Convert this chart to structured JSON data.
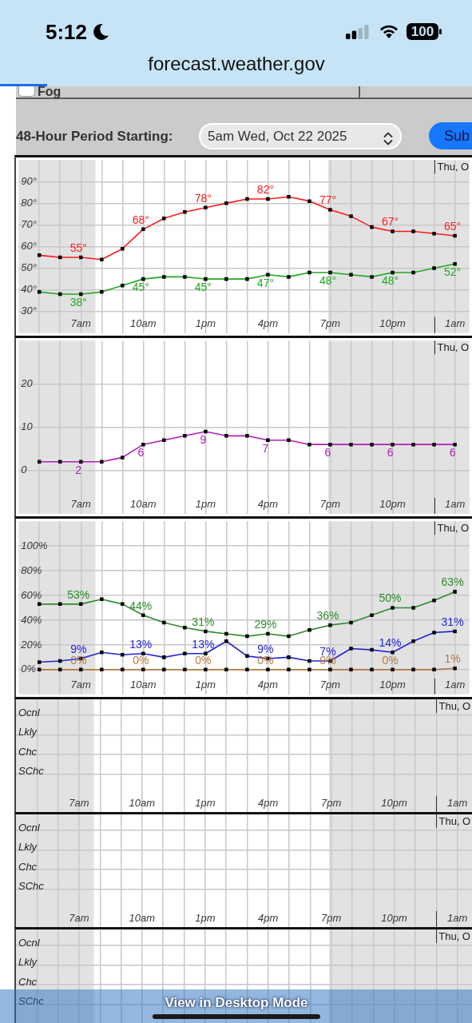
{
  "chart_data": [
    {
      "type": "other",
      "annotations": [
        "5:12",
        "100",
        "forecast.weather.gov",
        "Fog",
        "48-Hour Period Starting:",
        "5am Wed, Oct 22 2025",
        "Sub"
      ]
    },
    {
      "type": "line",
      "x": [
        "2025-10-22T05:00",
        "2025-10-22T06:00",
        "2025-10-22T07:00",
        "2025-10-22T08:00",
        "2025-10-22T09:00",
        "2025-10-22T10:00",
        "2025-10-22T11:00",
        "2025-10-22T12:00",
        "2025-10-22T13:00",
        "2025-10-22T14:00",
        "2025-10-22T15:00",
        "2025-10-22T16:00",
        "2025-10-22T17:00",
        "2025-10-22T18:00",
        "2025-10-22T19:00",
        "2025-10-22T20:00",
        "2025-10-22T21:00",
        "2025-10-22T22:00",
        "2025-10-22T23:00",
        "2025-10-23T00:00",
        "2025-10-23T01:00"
      ],
      "xlim": [
        "2025-10-22T04:00",
        "2025-10-23T01:42"
      ],
      "xticks": [
        {
          "value": "2025-10-22T05:00",
          "label": null
        },
        {
          "value": "2025-10-22T06:00",
          "label": null
        },
        {
          "value": "2025-10-22T07:00",
          "label": "7am"
        },
        {
          "value": "2025-10-22T08:00",
          "label": null
        },
        {
          "value": "2025-10-22T09:00",
          "label": null
        },
        {
          "value": "2025-10-22T10:00",
          "label": "10am"
        },
        {
          "value": "2025-10-22T11:00",
          "label": null
        },
        {
          "value": "2025-10-22T12:00",
          "label": null
        },
        {
          "value": "2025-10-22T13:00",
          "label": "1pm"
        },
        {
          "value": "2025-10-22T14:00",
          "label": null
        },
        {
          "value": "2025-10-22T15:00",
          "label": null
        },
        {
          "value": "2025-10-22T16:00",
          "label": "4pm"
        },
        {
          "value": "2025-10-22T17:00",
          "label": null
        },
        {
          "value": "2025-10-22T18:00",
          "label": null
        },
        {
          "value": "2025-10-22T19:00",
          "label": "7pm"
        },
        {
          "value": "2025-10-22T20:00",
          "label": null
        },
        {
          "value": "2025-10-22T21:00",
          "label": null
        },
        {
          "value": "2025-10-22T22:00",
          "label": "10pm"
        },
        {
          "value": "2025-10-22T23:00",
          "label": null
        },
        {
          "value": "2025-10-23T00:00",
          "label": null
        },
        {
          "value": "2025-10-23T01:00",
          "label": "1am"
        }
      ],
      "ylim": [
        20,
        100
      ],
      "yticks": [
        {
          "value": 30,
          "label": "30°"
        },
        {
          "value": 40,
          "label": "40°"
        },
        {
          "value": 50,
          "label": "50°"
        },
        {
          "value": 60,
          "label": "60°"
        },
        {
          "value": 70,
          "label": "70°"
        },
        {
          "value": 80,
          "label": "80°"
        },
        {
          "value": 90,
          "label": "90°"
        }
      ],
      "series": [
        {
          "color": "#ff1a1a",
          "values": [
            56,
            55,
            55,
            54,
            59,
            68,
            73,
            76,
            78,
            80,
            82,
            82,
            83,
            81,
            77,
            74,
            69,
            67,
            67,
            66,
            65
          ],
          "value_labels": [
            null,
            null,
            "55°",
            null,
            null,
            "68°",
            null,
            null,
            "78°",
            null,
            null,
            "82°",
            null,
            null,
            "77°",
            null,
            null,
            "67°",
            null,
            null,
            "65°"
          ]
        },
        {
          "color": "#22a822",
          "values": [
            39,
            38,
            38,
            39,
            42,
            45,
            46,
            46,
            45,
            45,
            45,
            47,
            46,
            48,
            48,
            47,
            46,
            48,
            48,
            50,
            52
          ],
          "value_labels": [
            null,
            null,
            "38°",
            null,
            null,
            "45°",
            null,
            null,
            "45°",
            null,
            null,
            "47°",
            null,
            null,
            "48°",
            null,
            null,
            "48°",
            null,
            null,
            "52°"
          ]
        }
      ],
      "marker": "square",
      "grid": true,
      "bands": [
        {
          "axis": "x",
          "from": "2025-10-22T04:00",
          "to": "2025-10-22T07:42",
          "color": "#e2e2e2"
        },
        {
          "axis": "x",
          "from": "2025-10-22T18:54",
          "to": "2025-10-23T01:42",
          "color": "#e2e2e2"
        }
      ],
      "ref_lines": [
        {
          "axis": "x",
          "value": "2025-10-23T00:00",
          "label": "Thu, O"
        }
      ]
    },
    {
      "type": "line",
      "x": [
        "2025-10-22T05:00",
        "2025-10-22T06:00",
        "2025-10-22T07:00",
        "2025-10-22T08:00",
        "2025-10-22T09:00",
        "2025-10-22T10:00",
        "2025-10-22T11:00",
        "2025-10-22T12:00",
        "2025-10-22T13:00",
        "2025-10-22T14:00",
        "2025-10-22T15:00",
        "2025-10-22T16:00",
        "2025-10-22T17:00",
        "2025-10-22T18:00",
        "2025-10-22T19:00",
        "2025-10-22T20:00",
        "2025-10-22T21:00",
        "2025-10-22T22:00",
        "2025-10-22T23:00",
        "2025-10-23T00:00",
        "2025-10-23T01:00"
      ],
      "xlim": [
        "2025-10-22T04:00",
        "2025-10-23T01:42"
      ],
      "xticks": [
        {
          "value": "2025-10-22T05:00",
          "label": null
        },
        {
          "value": "2025-10-22T06:00",
          "label": null
        },
        {
          "value": "2025-10-22T07:00",
          "label": "7am"
        },
        {
          "value": "2025-10-22T08:00",
          "label": null
        },
        {
          "value": "2025-10-22T09:00",
          "label": null
        },
        {
          "value": "2025-10-22T10:00",
          "label": "10am"
        },
        {
          "value": "2025-10-22T11:00",
          "label": null
        },
        {
          "value": "2025-10-22T12:00",
          "label": null
        },
        {
          "value": "2025-10-22T13:00",
          "label": "1pm"
        },
        {
          "value": "2025-10-22T14:00",
          "label": null
        },
        {
          "value": "2025-10-22T15:00",
          "label": null
        },
        {
          "value": "2025-10-22T16:00",
          "label": "4pm"
        },
        {
          "value": "2025-10-22T17:00",
          "label": null
        },
        {
          "value": "2025-10-22T18:00",
          "label": null
        },
        {
          "value": "2025-10-22T19:00",
          "label": "7pm"
        },
        {
          "value": "2025-10-22T20:00",
          "label": null
        },
        {
          "value": "2025-10-22T21:00",
          "label": null
        },
        {
          "value": "2025-10-22T22:00",
          "label": "10pm"
        },
        {
          "value": "2025-10-22T23:00",
          "label": null
        },
        {
          "value": "2025-10-23T00:00",
          "label": null
        },
        {
          "value": "2025-10-23T01:00",
          "label": "1am"
        }
      ],
      "ylim": [
        -10,
        30
      ],
      "yticks": [
        0,
        10,
        20
      ],
      "series": [
        {
          "color": "#b01cb8",
          "values": [
            2,
            2,
            2,
            2,
            3,
            6,
            7,
            8,
            9,
            8,
            8,
            7,
            7,
            6,
            6,
            6,
            6,
            6,
            6,
            6,
            6
          ],
          "value_labels": [
            null,
            null,
            "2",
            null,
            null,
            "6",
            null,
            null,
            "9",
            null,
            null,
            "7",
            null,
            null,
            "6",
            null,
            null,
            "6",
            null,
            null,
            "6"
          ]
        }
      ],
      "marker": "square",
      "grid": true,
      "bands": [
        {
          "axis": "x",
          "from": "2025-10-22T04:00",
          "to": "2025-10-22T07:42",
          "color": "#e2e2e2"
        },
        {
          "axis": "x",
          "from": "2025-10-22T18:54",
          "to": "2025-10-23T01:42",
          "color": "#e2e2e2"
        }
      ],
      "ref_lines": [
        {
          "axis": "x",
          "value": "2025-10-23T00:00",
          "label": "Thu, O"
        }
      ]
    },
    {
      "type": "line",
      "x": [
        "2025-10-22T05:00",
        "2025-10-22T06:00",
        "2025-10-22T07:00",
        "2025-10-22T08:00",
        "2025-10-22T09:00",
        "2025-10-22T10:00",
        "2025-10-22T11:00",
        "2025-10-22T12:00",
        "2025-10-22T13:00",
        "2025-10-22T14:00",
        "2025-10-22T15:00",
        "2025-10-22T16:00",
        "2025-10-22T17:00",
        "2025-10-22T18:00",
        "2025-10-22T19:00",
        "2025-10-22T20:00",
        "2025-10-22T21:00",
        "2025-10-22T22:00",
        "2025-10-22T23:00",
        "2025-10-23T00:00",
        "2025-10-23T01:00"
      ],
      "xlim": [
        "2025-10-22T04:00",
        "2025-10-23T01:42"
      ],
      "xticks": [
        {
          "value": "2025-10-22T05:00",
          "label": null
        },
        {
          "value": "2025-10-22T06:00",
          "label": null
        },
        {
          "value": "2025-10-22T07:00",
          "label": "7am"
        },
        {
          "value": "2025-10-22T08:00",
          "label": null
        },
        {
          "value": "2025-10-22T09:00",
          "label": null
        },
        {
          "value": "2025-10-22T10:00",
          "label": "10am"
        },
        {
          "value": "2025-10-22T11:00",
          "label": null
        },
        {
          "value": "2025-10-22T12:00",
          "label": null
        },
        {
          "value": "2025-10-22T13:00",
          "label": "1pm"
        },
        {
          "value": "2025-10-22T14:00",
          "label": null
        },
        {
          "value": "2025-10-22T15:00",
          "label": null
        },
        {
          "value": "2025-10-22T16:00",
          "label": "4pm"
        },
        {
          "value": "2025-10-22T17:00",
          "label": null
        },
        {
          "value": "2025-10-22T18:00",
          "label": null
        },
        {
          "value": "2025-10-22T19:00",
          "label": "7pm"
        },
        {
          "value": "2025-10-22T20:00",
          "label": null
        },
        {
          "value": "2025-10-22T21:00",
          "label": null
        },
        {
          "value": "2025-10-22T22:00",
          "label": "10pm"
        },
        {
          "value": "2025-10-22T23:00",
          "label": null
        },
        {
          "value": "2025-10-23T00:00",
          "label": null
        },
        {
          "value": "2025-10-23T01:00",
          "label": "1am"
        }
      ],
      "ylim": [
        -20,
        120
      ],
      "yticks": [
        {
          "value": 0,
          "label": "0%"
        },
        {
          "value": 20,
          "label": "20%"
        },
        {
          "value": 40,
          "label": "40%"
        },
        {
          "value": 60,
          "label": "60%"
        },
        {
          "value": 80,
          "label": "80%"
        },
        {
          "value": 100,
          "label": "100%"
        }
      ],
      "series": [
        {
          "color": "#2e8b2e",
          "values": [
            53,
            53,
            53,
            57,
            53,
            44,
            38,
            34,
            31,
            29,
            27,
            29,
            27,
            32,
            36,
            38,
            44,
            50,
            50,
            56,
            63
          ],
          "value_labels": [
            null,
            null,
            "53%",
            null,
            null,
            "44%",
            null,
            null,
            "31%",
            null,
            null,
            "29%",
            null,
            null,
            "36%",
            null,
            null,
            "50%",
            null,
            null,
            "63%"
          ]
        },
        {
          "color": "#2323d8",
          "values": [
            6,
            7,
            9,
            14,
            12,
            13,
            10,
            13,
            13,
            23,
            11,
            9,
            10,
            7,
            7,
            17,
            16,
            14,
            23,
            30,
            31
          ],
          "value_labels": [
            null,
            null,
            "9%",
            null,
            null,
            "13%",
            null,
            null,
            "13%",
            null,
            null,
            "9%",
            null,
            null,
            "7%",
            null,
            null,
            "14%",
            null,
            null,
            "31%"
          ]
        },
        {
          "color": "#b5793f",
          "values": [
            0,
            0,
            0,
            0,
            0,
            0,
            0,
            0,
            0,
            0,
            0,
            0,
            0,
            0,
            0,
            0,
            0,
            0,
            0,
            0,
            1
          ],
          "value_labels": [
            null,
            null,
            "0%",
            null,
            null,
            "0%",
            null,
            null,
            "0%",
            null,
            null,
            "0%",
            null,
            null,
            "0%",
            null,
            null,
            "0%",
            null,
            null,
            "1%"
          ]
        }
      ],
      "marker": "square",
      "grid": true,
      "bands": [
        {
          "axis": "x",
          "from": "2025-10-22T04:00",
          "to": "2025-10-22T07:42",
          "color": "#e2e2e2"
        },
        {
          "axis": "x",
          "from": "2025-10-22T18:54",
          "to": "2025-10-23T01:42",
          "color": "#e2e2e2"
        }
      ],
      "ref_lines": [
        {
          "axis": "x",
          "value": "2025-10-23T00:00",
          "label": "Thu, O"
        }
      ]
    },
    {
      "type": "heatmap",
      "x": [
        "2025-10-22T05:00",
        "2025-10-22T06:00",
        "2025-10-22T07:00",
        "2025-10-22T08:00",
        "2025-10-22T09:00",
        "2025-10-22T10:00",
        "2025-10-22T11:00",
        "2025-10-22T12:00",
        "2025-10-22T13:00",
        "2025-10-22T14:00",
        "2025-10-22T15:00",
        "2025-10-22T16:00",
        "2025-10-22T17:00",
        "2025-10-22T18:00",
        "2025-10-22T19:00",
        "2025-10-22T20:00",
        "2025-10-22T21:00",
        "2025-10-22T22:00",
        "2025-10-22T23:00",
        "2025-10-23T00:00",
        "2025-10-23T01:00"
      ],
      "xlim": [
        "2025-10-22T04:00",
        "2025-10-23T01:42"
      ],
      "xticks": [
        {
          "value": "2025-10-22T05:00",
          "label": null
        },
        {
          "value": "2025-10-22T06:00",
          "label": null
        },
        {
          "value": "2025-10-22T07:00",
          "label": "7am"
        },
        {
          "value": "2025-10-22T08:00",
          "label": null
        },
        {
          "value": "2025-10-22T09:00",
          "label": null
        },
        {
          "value": "2025-10-22T10:00",
          "label": "10am"
        },
        {
          "value": "2025-10-22T11:00",
          "label": null
        },
        {
          "value": "2025-10-22T12:00",
          "label": null
        },
        {
          "value": "2025-10-22T13:00",
          "label": "1pm"
        },
        {
          "value": "2025-10-22T14:00",
          "label": null
        },
        {
          "value": "2025-10-22T15:00",
          "label": null
        },
        {
          "value": "2025-10-22T16:00",
          "label": "4pm"
        },
        {
          "value": "2025-10-22T17:00",
          "label": null
        },
        {
          "value": "2025-10-22T18:00",
          "label": null
        },
        {
          "value": "2025-10-22T19:00",
          "label": "7pm"
        },
        {
          "value": "2025-10-22T20:00",
          "label": null
        },
        {
          "value": "2025-10-22T21:00",
          "label": null
        },
        {
          "value": "2025-10-22T22:00",
          "label": "10pm"
        },
        {
          "value": "2025-10-22T23:00",
          "label": null
        },
        {
          "value": "2025-10-23T00:00",
          "label": null
        },
        {
          "value": "2025-10-23T01:00",
          "label": "1am"
        }
      ],
      "y_categories": [
        "Ocnl",
        "Lkly",
        "Chc",
        "SChc"
      ],
      "cells": [
        [
          null,
          null,
          null,
          null,
          null,
          null,
          null,
          null,
          null,
          null,
          null,
          null,
          null,
          null,
          null,
          null,
          null,
          null,
          null,
          null,
          null
        ],
        [
          null,
          null,
          null,
          null,
          null,
          null,
          null,
          null,
          null,
          null,
          null,
          null,
          null,
          null,
          null,
          null,
          null,
          null,
          null,
          null,
          null
        ],
        [
          null,
          null,
          null,
          null,
          null,
          null,
          null,
          null,
          null,
          null,
          null,
          null,
          null,
          null,
          null,
          null,
          null,
          null,
          null,
          null,
          null
        ],
        [
          null,
          null,
          null,
          null,
          null,
          null,
          null,
          null,
          null,
          null,
          null,
          null,
          null,
          null,
          null,
          null,
          null,
          null,
          null,
          null,
          null
        ]
      ],
      "grid": true,
      "bands": [
        {
          "axis": "x",
          "from": "2025-10-22T04:00",
          "to": "2025-10-22T07:42",
          "color": "#e2e2e2"
        },
        {
          "axis": "x",
          "from": "2025-10-22T18:54",
          "to": "2025-10-23T01:42",
          "color": "#e2e2e2"
        }
      ],
      "ref_lines": [
        {
          "axis": "x",
          "value": "2025-10-23T00:00",
          "label": "Thu, O"
        }
      ]
    },
    {
      "type": "heatmap",
      "x": [
        "2025-10-22T05:00",
        "2025-10-22T06:00",
        "2025-10-22T07:00",
        "2025-10-22T08:00",
        "2025-10-22T09:00",
        "2025-10-22T10:00",
        "2025-10-22T11:00",
        "2025-10-22T12:00",
        "2025-10-22T13:00",
        "2025-10-22T14:00",
        "2025-10-22T15:00",
        "2025-10-22T16:00",
        "2025-10-22T17:00",
        "2025-10-22T18:00",
        "2025-10-22T19:00",
        "2025-10-22T20:00",
        "2025-10-22T21:00",
        "2025-10-22T22:00",
        "2025-10-22T23:00",
        "2025-10-23T00:00",
        "2025-10-23T01:00"
      ],
      "xlim": [
        "2025-10-22T04:00",
        "2025-10-23T01:42"
      ],
      "xticks": [
        {
          "value": "2025-10-22T05:00",
          "label": null
        },
        {
          "value": "2025-10-22T06:00",
          "label": null
        },
        {
          "value": "2025-10-22T07:00",
          "label": "7am"
        },
        {
          "value": "2025-10-22T08:00",
          "label": null
        },
        {
          "value": "2025-10-22T09:00",
          "label": null
        },
        {
          "value": "2025-10-22T10:00",
          "label": "10am"
        },
        {
          "value": "2025-10-22T11:00",
          "label": null
        },
        {
          "value": "2025-10-22T12:00",
          "label": null
        },
        {
          "value": "2025-10-22T13:00",
          "label": "1pm"
        },
        {
          "value": "2025-10-22T14:00",
          "label": null
        },
        {
          "value": "2025-10-22T15:00",
          "label": null
        },
        {
          "value": "2025-10-22T16:00",
          "label": "4pm"
        },
        {
          "value": "2025-10-22T17:00",
          "label": null
        },
        {
          "value": "2025-10-22T18:00",
          "label": null
        },
        {
          "value": "2025-10-22T19:00",
          "label": "7pm"
        },
        {
          "value": "2025-10-22T20:00",
          "label": null
        },
        {
          "value": "2025-10-22T21:00",
          "label": null
        },
        {
          "value": "2025-10-22T22:00",
          "label": "10pm"
        },
        {
          "value": "2025-10-22T23:00",
          "label": null
        },
        {
          "value": "2025-10-23T00:00",
          "label": null
        },
        {
          "value": "2025-10-23T01:00",
          "label": "1am"
        }
      ],
      "y_categories": [
        "Ocnl",
        "Lkly",
        "Chc",
        "SChc"
      ],
      "cells": [
        [
          null,
          null,
          null,
          null,
          null,
          null,
          null,
          null,
          null,
          null,
          null,
          null,
          null,
          null,
          null,
          null,
          null,
          null,
          null,
          null,
          null
        ],
        [
          null,
          null,
          null,
          null,
          null,
          null,
          null,
          null,
          null,
          null,
          null,
          null,
          null,
          null,
          null,
          null,
          null,
          null,
          null,
          null,
          null
        ],
        [
          null,
          null,
          null,
          null,
          null,
          null,
          null,
          null,
          null,
          null,
          null,
          null,
          null,
          null,
          null,
          null,
          null,
          null,
          null,
          null,
          null
        ],
        [
          null,
          null,
          null,
          null,
          null,
          null,
          null,
          null,
          null,
          null,
          null,
          null,
          null,
          null,
          null,
          null,
          null,
          null,
          null,
          null,
          null
        ]
      ],
      "grid": true,
      "bands": [
        {
          "axis": "x",
          "from": "2025-10-22T04:00",
          "to": "2025-10-22T07:42",
          "color": "#e2e2e2"
        },
        {
          "axis": "x",
          "from": "2025-10-22T18:54",
          "to": "2025-10-23T01:42",
          "color": "#e2e2e2"
        }
      ],
      "ref_lines": [
        {
          "axis": "x",
          "value": "2025-10-23T00:00",
          "label": "Thu, O"
        }
      ]
    },
    {
      "type": "heatmap",
      "categories": [
        null,
        null,
        null,
        null,
        null,
        null,
        null,
        null,
        null,
        null,
        null,
        null,
        null,
        null,
        null,
        null,
        null,
        null,
        null,
        null,
        null
      ],
      "y_categories": [
        "Ocnl",
        "Lkly",
        "Chc",
        "SChc"
      ],
      "cells": [
        [
          null,
          null,
          null,
          null,
          null,
          null,
          null,
          null,
          null,
          null,
          null,
          null,
          null,
          null,
          null,
          null,
          null,
          null,
          null,
          null,
          null
        ],
        [
          null,
          null,
          null,
          null,
          null,
          null,
          null,
          null,
          null,
          null,
          null,
          null,
          null,
          null,
          null,
          null,
          null,
          null,
          null,
          null,
          null
        ],
        [
          null,
          null,
          null,
          null,
          null,
          null,
          null,
          null,
          null,
          null,
          null,
          null,
          null,
          null,
          null,
          null,
          null,
          null,
          null,
          null,
          null
        ],
        [
          null,
          null,
          null,
          null,
          null,
          null,
          null,
          null,
          null,
          null,
          null,
          null,
          null,
          null,
          null,
          null,
          null,
          null,
          null,
          null,
          null
        ]
      ],
      "grid": true,
      "annotations": [
        "Thu, O"
      ]
    },
    {
      "type": "other",
      "annotations": [
        "View in Desktop Mode"
      ]
    }
  ]
}
